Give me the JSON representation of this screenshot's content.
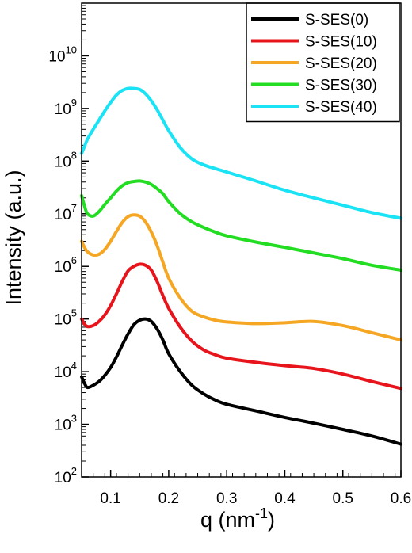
{
  "chart_data": {
    "type": "line",
    "xlabel": "q (nm",
    "xlabel_sup": "-1",
    "xlabel_close": ")",
    "ylabel": "Intensity (a.u.)",
    "xlim": [
      0.05,
      0.6
    ],
    "ylim_exponents": [
      2,
      11
    ],
    "yscale": "log",
    "grid": false,
    "legend_position": "top-right",
    "x_ticks": [
      {
        "value": 0.1,
        "label": "0.1"
      },
      {
        "value": 0.2,
        "label": "0.2"
      },
      {
        "value": 0.3,
        "label": "0.3"
      },
      {
        "value": 0.4,
        "label": "0.4"
      },
      {
        "value": 0.5,
        "label": "0.5"
      },
      {
        "value": 0.6,
        "label": "0.6"
      }
    ],
    "y_ticks": [
      {
        "exp": 2,
        "base": "10",
        "sup": "2"
      },
      {
        "exp": 3,
        "base": "10",
        "sup": "3"
      },
      {
        "exp": 4,
        "base": "10",
        "sup": "4"
      },
      {
        "exp": 5,
        "base": "10",
        "sup": "5"
      },
      {
        "exp": 6,
        "base": "10",
        "sup": "6"
      },
      {
        "exp": 7,
        "base": "10",
        "sup": "7"
      },
      {
        "exp": 8,
        "base": "10",
        "sup": "8"
      },
      {
        "exp": 9,
        "base": "10",
        "sup": "9"
      },
      {
        "exp": 10,
        "base": "10",
        "sup": "10"
      }
    ],
    "x": [
      0.05,
      0.055,
      0.06,
      0.07,
      0.08,
      0.09,
      0.1,
      0.11,
      0.12,
      0.13,
      0.14,
      0.15,
      0.16,
      0.17,
      0.18,
      0.19,
      0.2,
      0.22,
      0.24,
      0.26,
      0.28,
      0.3,
      0.35,
      0.4,
      0.45,
      0.5,
      0.55,
      0.6
    ],
    "series": [
      {
        "name": "S-SES(0)",
        "color": "#000000",
        "values": [
          8000,
          6000,
          5000,
          5500,
          6500,
          8500,
          12000,
          19000,
          32000,
          52000,
          78000,
          95000,
          100000,
          90000,
          65000,
          40000,
          22000,
          10000,
          5500,
          3800,
          2900,
          2400,
          1800,
          1350,
          1050,
          800,
          600,
          420
        ]
      },
      {
        "name": "S-SES(10)",
        "color": "#e8141c",
        "values": [
          100000,
          80000,
          72000,
          75000,
          90000,
          120000,
          180000,
          300000,
          520000,
          820000,
          1000000,
          1100000,
          1050000,
          850000,
          520000,
          280000,
          160000,
          70000,
          38000,
          26000,
          21000,
          18000,
          15000,
          13000,
          11500,
          9000,
          6500,
          4800
        ]
      },
      {
        "name": "S-SES(20)",
        "color": "#f5a623",
        "values": [
          3000000,
          2300000,
          1900000,
          1650000,
          1700000,
          2100000,
          3000000,
          4600000,
          6800000,
          8800000,
          9500000,
          9000000,
          7000000,
          4500000,
          2500000,
          1200000,
          600000,
          250000,
          140000,
          110000,
          95000,
          88000,
          82000,
          85000,
          90000,
          75000,
          55000,
          40000
        ]
      },
      {
        "name": "S-SES(30)",
        "color": "#22dd22",
        "values": [
          22000000,
          14000000,
          10000000,
          9000000,
          11000000,
          15000000,
          20000000,
          27000000,
          34000000,
          39000000,
          41000000,
          42000000,
          40000000,
          36000000,
          30000000,
          24000000,
          17000000,
          10000000,
          7000000,
          5500000,
          4500000,
          3800000,
          2900000,
          2300000,
          1800000,
          1400000,
          1050000,
          850000
        ]
      },
      {
        "name": "S-SES(40)",
        "color": "#1ae3f5",
        "values": [
          140000000,
          190000000,
          260000000,
          400000000,
          600000000,
          900000000,
          1300000000,
          1800000000,
          2200000000,
          2400000000,
          2400000000,
          2300000000,
          1900000000,
          1400000000,
          950000000,
          600000000,
          380000000,
          180000000,
          110000000,
          85000000,
          72000000,
          62000000,
          42000000,
          28000000,
          20000000,
          14500000,
          10500000,
          8200000
        ]
      }
    ]
  }
}
